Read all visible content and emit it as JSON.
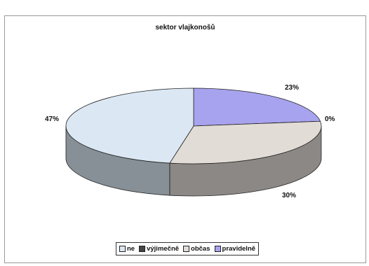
{
  "chart_data": {
    "type": "pie",
    "title": "sektor vlajkonošů",
    "categories": [
      "ne",
      "výjimečně",
      "občas",
      "pravidelně"
    ],
    "values": [
      47,
      0,
      30,
      23
    ],
    "labels": [
      "47%",
      "0%",
      "30%",
      "23%"
    ],
    "colors": {
      "ne": "#dbe8f4",
      "výjimečně": "#444444",
      "občas": "#e2dcd6",
      "pravidelně": "#a7a3ee"
    },
    "legend_position": "bottom",
    "style": "3d"
  }
}
